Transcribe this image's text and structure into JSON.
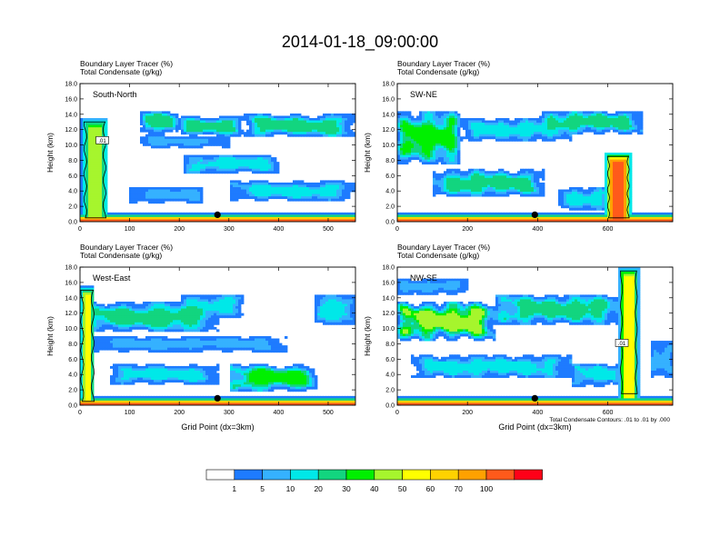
{
  "title": "2014-01-18_09:00:00",
  "panel_header_line1": "Boundary Layer Tracer    (%)",
  "panel_header_line2": "Total Condensate    (g/kg)",
  "colors": {
    "levels": [
      "#ffffff",
      "#1e7bff",
      "#35b1ff",
      "#00e8e8",
      "#12d57f",
      "#00f000",
      "#a6f52d",
      "#ffff00",
      "#ffd200",
      "#ffa100",
      "#ff5a1b",
      "#ff0018"
    ],
    "contour": "#000000",
    "marker": "#000000"
  },
  "colorbar": {
    "labels": [
      "1",
      "5",
      "10",
      "20",
      "30",
      "40",
      "50",
      "60",
      "70",
      "100"
    ]
  },
  "contour_note": "Total Condensate Contours: .01 to .01 by .000",
  "chart_data": [
    {
      "type": "heatmap",
      "name": "South-North",
      "panel_label": "South-North",
      "xlabel": "",
      "ylabel": "Height (km)",
      "xlim": [
        0,
        555
      ],
      "ylim": [
        0,
        18
      ],
      "xticks": [
        0,
        100,
        200,
        300,
        400,
        500
      ],
      "yticks": [
        "0.0",
        "2.0",
        "4.0",
        "6.0",
        "8.0",
        "10.0",
        "12.0",
        "14.0",
        "16.0",
        "18.0"
      ],
      "marker_x": 277,
      "contour_labels": [
        {
          "x": 45,
          "y": 10.5,
          "text": ".01"
        }
      ],
      "features": [
        {
          "shape": "surface",
          "x0": 0,
          "x1": 555,
          "levels": [
            11,
            10,
            9,
            8,
            7,
            6,
            4,
            2,
            1
          ]
        },
        {
          "shape": "column",
          "x": 30,
          "w": 55,
          "y0": 0,
          "y1": 13.5,
          "peak": 6
        },
        {
          "shape": "band",
          "x0": 120,
          "x1": 200,
          "yc": 13,
          "h": 3,
          "peak": 4
        },
        {
          "shape": "band",
          "x0": 200,
          "x1": 330,
          "yc": 12.5,
          "h": 2.5,
          "peak": 4
        },
        {
          "shape": "band",
          "x0": 330,
          "x1": 555,
          "yc": 12.5,
          "h": 3,
          "peak": 4
        },
        {
          "shape": "band",
          "x0": 120,
          "x1": 300,
          "yc": 10.5,
          "h": 1.5,
          "peak": 2
        },
        {
          "shape": "band",
          "x0": 210,
          "x1": 400,
          "yc": 7.5,
          "h": 2.5,
          "peak": 3
        },
        {
          "shape": "band",
          "x0": 300,
          "x1": 555,
          "yc": 4,
          "h": 2.5,
          "peak": 3
        },
        {
          "shape": "band",
          "x0": 100,
          "x1": 250,
          "yc": 3.5,
          "h": 2,
          "peak": 2
        }
      ]
    },
    {
      "type": "heatmap",
      "name": "SW-NE",
      "panel_label": "SW-NE",
      "xlabel": "",
      "ylabel": "Height (km)",
      "xlim": [
        0,
        785
      ],
      "ylim": [
        0,
        18
      ],
      "xticks": [
        0,
        200,
        400,
        600
      ],
      "yticks": [
        "0.0",
        "2.0",
        "4.0",
        "6.0",
        "8.0",
        "10.0",
        "12.0",
        "14.0",
        "16.0",
        "18.0"
      ],
      "marker_x": 392,
      "contour_labels": [],
      "features": [
        {
          "shape": "surface",
          "x0": 0,
          "x1": 785,
          "levels": [
            11,
            10,
            9,
            8,
            7,
            6,
            4,
            2,
            1
          ]
        },
        {
          "shape": "column",
          "x": 630,
          "w": 80,
          "y0": 0,
          "y1": 9,
          "peak": 10
        },
        {
          "shape": "band",
          "x0": 0,
          "x1": 180,
          "yc": 11,
          "h": 7,
          "peak": 5
        },
        {
          "shape": "band",
          "x0": 180,
          "x1": 500,
          "yc": 12,
          "h": 3,
          "peak": 3
        },
        {
          "shape": "band",
          "x0": 400,
          "x1": 700,
          "yc": 13,
          "h": 3,
          "peak": 4
        },
        {
          "shape": "band",
          "x0": 100,
          "x1": 420,
          "yc": 5,
          "h": 3.5,
          "peak": 4
        },
        {
          "shape": "band",
          "x0": 460,
          "x1": 600,
          "yc": 3,
          "h": 3,
          "peak": 3
        }
      ]
    },
    {
      "type": "heatmap",
      "name": "West-East",
      "panel_label": "West-East",
      "xlabel": "Grid Point (dx=3km)",
      "ylabel": "Height (km)",
      "xlim": [
        0,
        555
      ],
      "ylim": [
        0,
        18
      ],
      "xticks": [
        0,
        100,
        200,
        300,
        400,
        500
      ],
      "yticks": [
        "0.0",
        "2.0",
        "4.0",
        "6.0",
        "8.0",
        "10.0",
        "12.0",
        "14.0",
        "16.0",
        "18.0"
      ],
      "marker_x": 277,
      "contour_labels": [],
      "features": [
        {
          "shape": "surface",
          "x0": 0,
          "x1": 555,
          "levels": [
            11,
            10,
            9,
            8,
            7,
            6,
            4,
            2,
            1
          ]
        },
        {
          "shape": "column",
          "x": 15,
          "w": 30,
          "y0": 0,
          "y1": 15.5,
          "peak": 7
        },
        {
          "shape": "band",
          "x0": 0,
          "x1": 280,
          "yc": 11.5,
          "h": 4,
          "peak": 4
        },
        {
          "shape": "band",
          "x0": 200,
          "x1": 330,
          "yc": 13,
          "h": 3,
          "peak": 3
        },
        {
          "shape": "band",
          "x0": 470,
          "x1": 555,
          "yc": 12.5,
          "h": 4,
          "peak": 3
        },
        {
          "shape": "band",
          "x0": 0,
          "x1": 420,
          "yc": 8,
          "h": 2,
          "peak": 2
        },
        {
          "shape": "band",
          "x0": 60,
          "x1": 280,
          "yc": 4,
          "h": 2.5,
          "peak": 3
        },
        {
          "shape": "band",
          "x0": 300,
          "x1": 480,
          "yc": 3.5,
          "h": 3.5,
          "peak": 5
        }
      ]
    },
    {
      "type": "heatmap",
      "name": "NW-SE",
      "panel_label": "NW-SE",
      "xlabel": "Grid Point (dx=3km)",
      "ylabel": "Height (km)",
      "xlim": [
        0,
        785
      ],
      "ylim": [
        0,
        18
      ],
      "xticks": [
        0,
        200,
        400,
        600
      ],
      "yticks": [
        "0.0",
        "2.0",
        "4.0",
        "6.0",
        "8.0",
        "10.0",
        "12.0",
        "14.0",
        "16.0",
        "18.0"
      ],
      "marker_x": 392,
      "contour_labels": [
        {
          "x": 640,
          "y": 8,
          "text": ".01"
        }
      ],
      "features": [
        {
          "shape": "surface",
          "x0": 0,
          "x1": 785,
          "levels": [
            11,
            10,
            9,
            8,
            7,
            6,
            4,
            2,
            1
          ]
        },
        {
          "shape": "column",
          "x": 660,
          "w": 60,
          "y0": 1,
          "y1": 18,
          "peak": 7
        },
        {
          "shape": "band",
          "x0": 0,
          "x1": 280,
          "yc": 11,
          "h": 5,
          "peak": 6
        },
        {
          "shape": "band",
          "x0": 280,
          "x1": 640,
          "yc": 12.5,
          "h": 4,
          "peak": 4
        },
        {
          "shape": "band",
          "x0": 0,
          "x1": 200,
          "yc": 15.5,
          "h": 2,
          "peak": 2
        },
        {
          "shape": "band",
          "x0": 40,
          "x1": 500,
          "yc": 5,
          "h": 3,
          "peak": 3
        },
        {
          "shape": "band",
          "x0": 500,
          "x1": 640,
          "yc": 4,
          "h": 3,
          "peak": 3
        },
        {
          "shape": "band",
          "x0": 720,
          "x1": 785,
          "yc": 6,
          "h": 5,
          "peak": 2
        }
      ]
    }
  ]
}
